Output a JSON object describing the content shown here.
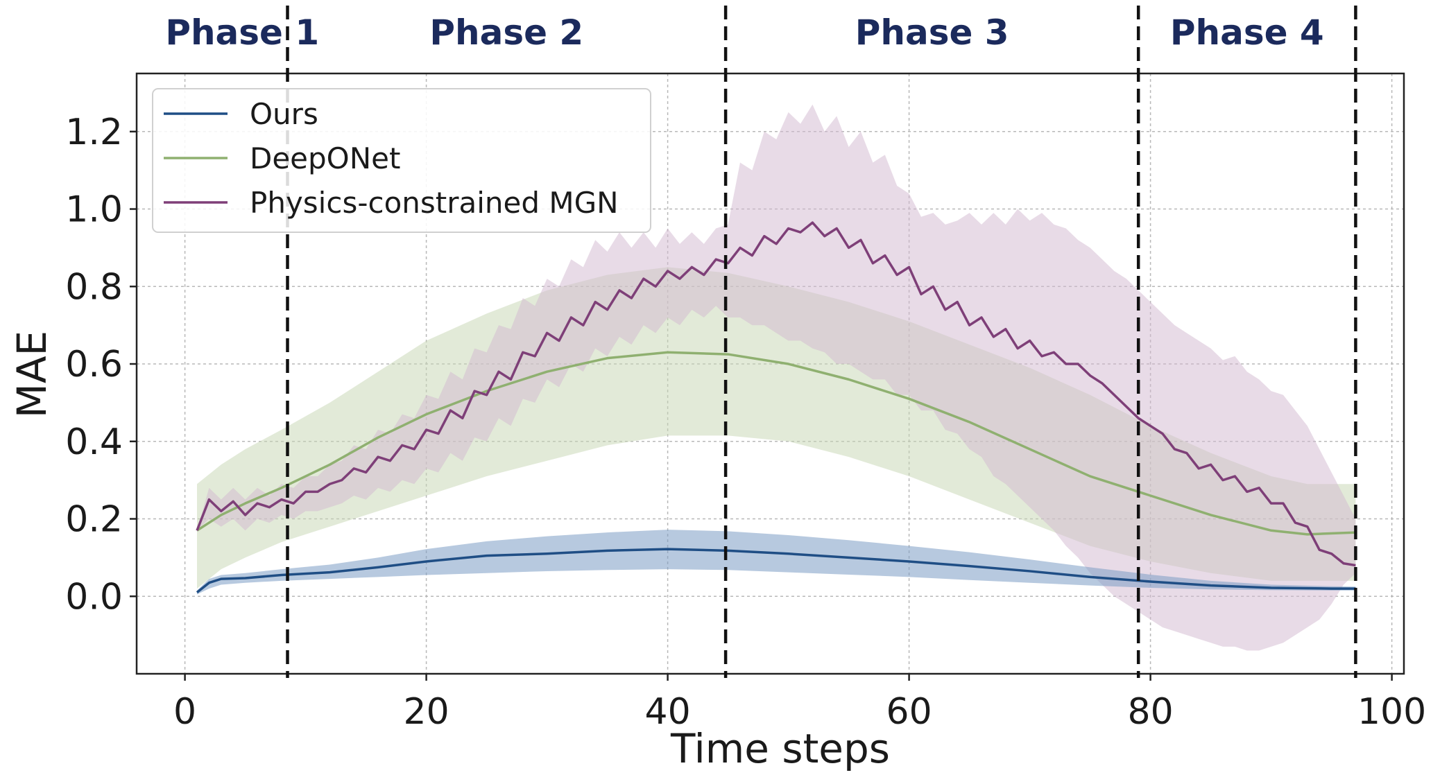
{
  "chart_data": {
    "type": "line",
    "title": "",
    "xlabel": "Time steps",
    "ylabel": "MAE",
    "xlim": [
      -4,
      101
    ],
    "ylim": [
      -0.2,
      1.35
    ],
    "x_ticks": [
      0,
      20,
      40,
      60,
      80,
      100
    ],
    "y_ticks": [
      0.0,
      0.2,
      0.4,
      0.6,
      0.8,
      1.0,
      1.2
    ],
    "grid": true,
    "legend_position": "top-left",
    "phases": [
      {
        "label": "Phase 1",
        "start": 1,
        "end": 8.5
      },
      {
        "label": "Phase 2",
        "start": 8.5,
        "end": 44.8
      },
      {
        "label": "Phase 3",
        "start": 44.8,
        "end": 79
      },
      {
        "label": "Phase 4",
        "start": 79,
        "end": 97
      }
    ],
    "phase_boundaries": [
      8.5,
      44.8,
      79,
      97
    ],
    "series": [
      {
        "name": "Ours",
        "color": "#1f4e85",
        "fill": "#7b9cc4",
        "x": [
          1,
          2,
          3,
          5,
          8,
          12,
          16,
          20,
          25,
          30,
          35,
          40,
          45,
          50,
          55,
          60,
          65,
          70,
          75,
          80,
          85,
          90,
          95,
          97
        ],
        "mean": [
          0.01,
          0.035,
          0.045,
          0.047,
          0.055,
          0.062,
          0.075,
          0.09,
          0.105,
          0.11,
          0.118,
          0.122,
          0.118,
          0.11,
          0.1,
          0.09,
          0.078,
          0.065,
          0.05,
          0.038,
          0.028,
          0.022,
          0.02,
          0.02
        ],
        "lower": [
          0.005,
          0.02,
          0.03,
          0.035,
          0.04,
          0.045,
          0.05,
          0.055,
          0.06,
          0.065,
          0.068,
          0.07,
          0.068,
          0.062,
          0.056,
          0.05,
          0.042,
          0.035,
          0.028,
          0.022,
          0.018,
          0.016,
          0.015,
          0.015
        ],
        "upper": [
          0.015,
          0.045,
          0.055,
          0.06,
          0.07,
          0.082,
          0.1,
          0.122,
          0.142,
          0.155,
          0.165,
          0.172,
          0.168,
          0.158,
          0.145,
          0.13,
          0.114,
          0.095,
          0.075,
          0.056,
          0.04,
          0.03,
          0.026,
          0.025
        ]
      },
      {
        "name": "DeepONet",
        "color": "#8fb070",
        "fill": "#c5d6b2",
        "x": [
          1,
          3,
          5,
          8,
          12,
          16,
          20,
          25,
          30,
          35,
          40,
          45,
          50,
          55,
          60,
          65,
          70,
          75,
          80,
          85,
          90,
          93,
          97
        ],
        "mean": [
          0.17,
          0.21,
          0.24,
          0.28,
          0.34,
          0.41,
          0.47,
          0.53,
          0.58,
          0.615,
          0.63,
          0.625,
          0.6,
          0.56,
          0.51,
          0.45,
          0.38,
          0.31,
          0.26,
          0.21,
          0.17,
          0.16,
          0.165
        ],
        "lower": [
          0.02,
          0.07,
          0.1,
          0.14,
          0.18,
          0.22,
          0.26,
          0.31,
          0.35,
          0.39,
          0.415,
          0.415,
          0.4,
          0.36,
          0.31,
          0.25,
          0.19,
          0.13,
          0.09,
          0.06,
          0.04,
          0.04,
          0.04
        ],
        "upper": [
          0.29,
          0.34,
          0.38,
          0.43,
          0.5,
          0.58,
          0.66,
          0.73,
          0.79,
          0.83,
          0.85,
          0.835,
          0.8,
          0.76,
          0.71,
          0.65,
          0.59,
          0.52,
          0.44,
          0.37,
          0.31,
          0.29,
          0.29
        ]
      },
      {
        "name": "Physics-constrained MGN",
        "color": "#7e3f78",
        "fill": "#d2b8d0",
        "x": [
          1,
          2,
          3,
          4,
          5,
          6,
          7,
          8,
          9,
          10,
          11,
          12,
          13,
          14,
          15,
          16,
          17,
          18,
          19,
          20,
          21,
          22,
          23,
          24,
          25,
          26,
          27,
          28,
          29,
          30,
          31,
          32,
          33,
          34,
          35,
          36,
          37,
          38,
          39,
          40,
          41,
          42,
          43,
          44,
          45,
          46,
          47,
          48,
          49,
          50,
          51,
          52,
          53,
          54,
          55,
          56,
          57,
          58,
          59,
          60,
          61,
          62,
          63,
          64,
          65,
          66,
          67,
          68,
          69,
          70,
          71,
          72,
          73,
          74,
          75,
          76,
          77,
          78,
          79,
          80,
          81,
          82,
          83,
          84,
          85,
          86,
          87,
          88,
          89,
          90,
          91,
          92,
          93,
          94,
          95,
          96,
          97
        ],
        "mean": [
          0.17,
          0.25,
          0.22,
          0.245,
          0.21,
          0.24,
          0.23,
          0.25,
          0.24,
          0.27,
          0.27,
          0.29,
          0.3,
          0.33,
          0.32,
          0.36,
          0.35,
          0.39,
          0.38,
          0.43,
          0.42,
          0.48,
          0.46,
          0.53,
          0.52,
          0.58,
          0.56,
          0.63,
          0.62,
          0.68,
          0.66,
          0.72,
          0.7,
          0.76,
          0.74,
          0.79,
          0.77,
          0.82,
          0.8,
          0.84,
          0.82,
          0.85,
          0.83,
          0.87,
          0.86,
          0.9,
          0.88,
          0.93,
          0.91,
          0.95,
          0.94,
          0.965,
          0.93,
          0.95,
          0.9,
          0.92,
          0.86,
          0.88,
          0.83,
          0.85,
          0.78,
          0.8,
          0.74,
          0.76,
          0.7,
          0.72,
          0.67,
          0.69,
          0.64,
          0.66,
          0.62,
          0.63,
          0.6,
          0.6,
          0.57,
          0.55,
          0.52,
          0.49,
          0.46,
          0.44,
          0.42,
          0.38,
          0.37,
          0.33,
          0.34,
          0.3,
          0.31,
          0.27,
          0.28,
          0.24,
          0.24,
          0.19,
          0.18,
          0.12,
          0.11,
          0.085,
          0.08
        ],
        "lower": [
          0.17,
          0.2,
          0.18,
          0.2,
          0.17,
          0.2,
          0.19,
          0.21,
          0.2,
          0.22,
          0.22,
          0.23,
          0.24,
          0.26,
          0.25,
          0.28,
          0.27,
          0.3,
          0.29,
          0.33,
          0.32,
          0.37,
          0.35,
          0.41,
          0.4,
          0.46,
          0.44,
          0.51,
          0.5,
          0.56,
          0.54,
          0.6,
          0.58,
          0.64,
          0.62,
          0.67,
          0.65,
          0.7,
          0.68,
          0.72,
          0.7,
          0.74,
          0.72,
          0.75,
          0.72,
          0.72,
          0.7,
          0.7,
          0.68,
          0.66,
          0.66,
          0.64,
          0.63,
          0.6,
          0.6,
          0.58,
          0.56,
          0.56,
          0.52,
          0.52,
          0.48,
          0.48,
          0.43,
          0.42,
          0.38,
          0.36,
          0.31,
          0.29,
          0.26,
          0.23,
          0.2,
          0.17,
          0.13,
          0.1,
          0.06,
          0.03,
          0.0,
          -0.02,
          -0.04,
          -0.06,
          -0.08,
          -0.09,
          -0.1,
          -0.11,
          -0.12,
          -0.13,
          -0.13,
          -0.14,
          -0.14,
          -0.13,
          -0.12,
          -0.1,
          -0.08,
          -0.06,
          -0.02,
          0.03,
          0.06
        ],
        "upper": [
          0.17,
          0.28,
          0.25,
          0.28,
          0.25,
          0.28,
          0.26,
          0.29,
          0.28,
          0.31,
          0.31,
          0.34,
          0.35,
          0.39,
          0.38,
          0.43,
          0.42,
          0.47,
          0.46,
          0.52,
          0.51,
          0.58,
          0.56,
          0.64,
          0.63,
          0.7,
          0.69,
          0.77,
          0.75,
          0.82,
          0.8,
          0.87,
          0.85,
          0.92,
          0.89,
          0.94,
          0.9,
          0.94,
          0.9,
          0.95,
          0.91,
          0.94,
          0.91,
          0.95,
          0.96,
          1.12,
          1.1,
          1.2,
          1.18,
          1.25,
          1.22,
          1.27,
          1.2,
          1.24,
          1.16,
          1.2,
          1.12,
          1.14,
          1.06,
          1.04,
          0.98,
          0.99,
          0.96,
          0.97,
          0.99,
          0.96,
          0.99,
          0.96,
          1.0,
          0.97,
          0.99,
          0.96,
          0.95,
          0.92,
          0.9,
          0.87,
          0.84,
          0.82,
          0.79,
          0.76,
          0.73,
          0.7,
          0.68,
          0.66,
          0.64,
          0.61,
          0.62,
          0.58,
          0.56,
          0.53,
          0.52,
          0.48,
          0.44,
          0.38,
          0.32,
          0.26,
          0.2
        ]
      }
    ]
  }
}
